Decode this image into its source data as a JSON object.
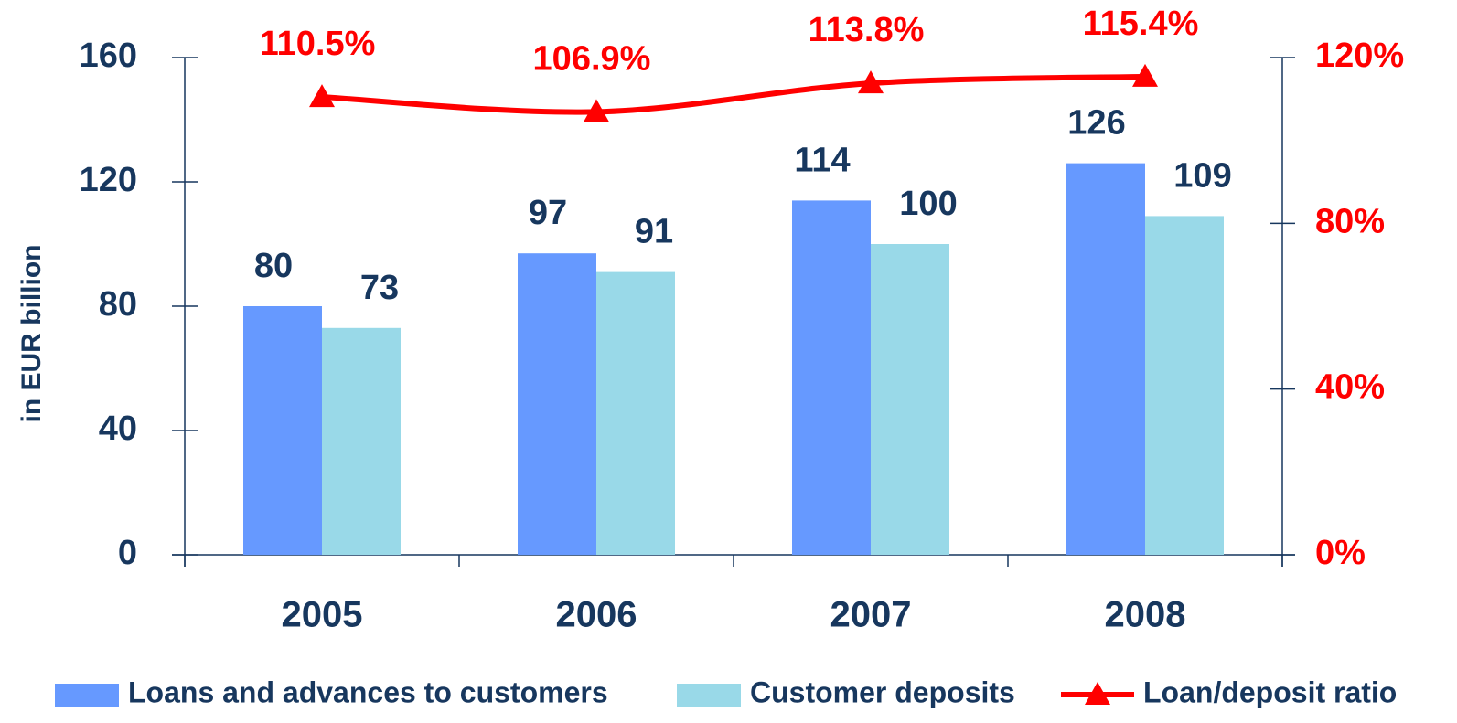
{
  "chart_data": {
    "type": "bar",
    "y_label": "in EUR billion",
    "categories": [
      "2005",
      "2006",
      "2007",
      "2008"
    ],
    "series": [
      {
        "name": "Loans and advances to customers",
        "type": "bar",
        "color": "#6699ff",
        "values": [
          80,
          97,
          114,
          126
        ]
      },
      {
        "name": "Customer deposits",
        "type": "bar",
        "color": "#99d9e8",
        "values": [
          73,
          91,
          100,
          109
        ]
      },
      {
        "name": "Loan/deposit ratio",
        "type": "line",
        "axis": "y2",
        "color": "#ff0000",
        "values": [
          110.5,
          106.9,
          113.8,
          115.4
        ],
        "value_labels": [
          "110.5%",
          "106.9%",
          "113.8%",
          "115.4%"
        ]
      }
    ],
    "ylim": [
      0,
      160
    ],
    "yticks": [
      0,
      40,
      80,
      120,
      160
    ],
    "y2lim": [
      0,
      120
    ],
    "y2ticks": [
      {
        "value": 0,
        "label": "0%"
      },
      {
        "value": 40,
        "label": "40%"
      },
      {
        "value": 80,
        "label": "80%"
      },
      {
        "value": 120,
        "label": "120%"
      }
    ],
    "legend": "bottom"
  }
}
